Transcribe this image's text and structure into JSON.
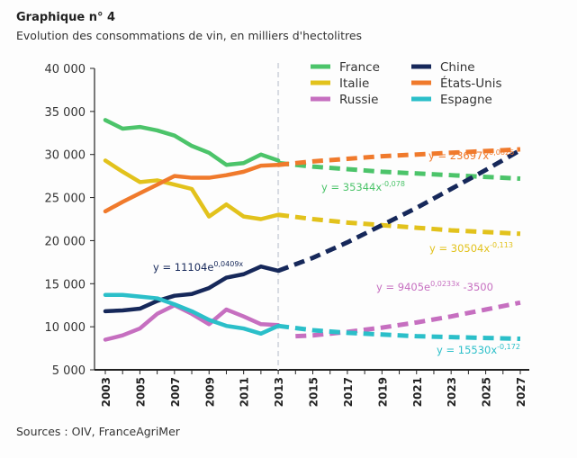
{
  "title": "Graphique n° 4",
  "subtitle": "Evolution des consommations de vin, en milliers d'hectolitres",
  "source": "Sources : OIV, FranceAgriMer",
  "chart_data": {
    "type": "line",
    "title": "Graphique n° 4",
    "subtitle": "Evolution des consommations de vin, en milliers d'hectolitres",
    "ylim": [
      5000,
      40000
    ],
    "xlim": [
      2003,
      2027
    ],
    "yticks": [
      "5 000",
      "10 000",
      "15 000",
      "20 000",
      "25 000",
      "30 000",
      "35 000",
      "40 000"
    ],
    "ytick_values": [
      5000,
      10000,
      15000,
      20000,
      25000,
      30000,
      35000,
      40000
    ],
    "xticks": [
      "2003",
      "2005",
      "2007",
      "2009",
      "2011",
      "2013",
      "2015",
      "2017",
      "2019",
      "2021",
      "2023",
      "2025",
      "2027"
    ],
    "projection_start": 2013,
    "legend_position": "top-right",
    "grid": false,
    "series": [
      {
        "name": "France",
        "color": "#4cc46a",
        "x": [
          2003,
          2004,
          2005,
          2006,
          2007,
          2008,
          2009,
          2010,
          2011,
          2012,
          2013
        ],
        "values": [
          34000,
          33000,
          33200,
          32800,
          32200,
          31000,
          30200,
          28800,
          29000,
          30000,
          29300
        ],
        "projection": {
          "x": [
            2013,
            2015,
            2017,
            2019,
            2021,
            2023,
            2025,
            2027
          ],
          "values": [
            29000,
            28600,
            28300,
            28000,
            27800,
            27600,
            27400,
            27200
          ]
        },
        "equation": "y = 35344x",
        "exponent": "-0,078"
      },
      {
        "name": "Italie",
        "color": "#e2c21c",
        "x": [
          2003,
          2004,
          2005,
          2006,
          2007,
          2008,
          2009,
          2010,
          2011,
          2012,
          2013
        ],
        "values": [
          29300,
          28000,
          26800,
          27000,
          26500,
          26000,
          22800,
          24200,
          22800,
          22500,
          23000
        ],
        "projection": {
          "x": [
            2013,
            2015,
            2017,
            2019,
            2021,
            2023,
            2025,
            2027
          ],
          "values": [
            23000,
            22500,
            22100,
            21800,
            21500,
            21200,
            21000,
            20800
          ]
        },
        "equation": "y = 30504x",
        "exponent": "-0,113"
      },
      {
        "name": "Russie",
        "color": "#c66fc0",
        "x": [
          2003,
          2004,
          2005,
          2006,
          2007,
          2008,
          2009,
          2010,
          2011,
          2012,
          2013
        ],
        "values": [
          8500,
          9000,
          9800,
          11500,
          12500,
          11500,
          10300,
          12000,
          11200,
          10300,
          10200
        ],
        "projection": {
          "x": [
            2014,
            2015,
            2017,
            2019,
            2021,
            2023,
            2025,
            2027
          ],
          "values": [
            8900,
            9000,
            9400,
            9900,
            10500,
            11200,
            12000,
            12800
          ]
        },
        "equation": "y = 9405e",
        "exponent": "0,0233x",
        "equation_suffix": " -3500"
      },
      {
        "name": "Chine",
        "color": "#16285a",
        "x": [
          2003,
          2004,
          2005,
          2006,
          2007,
          2008,
          2009,
          2010,
          2011,
          2012,
          2013
        ],
        "values": [
          11800,
          11900,
          12100,
          13000,
          13600,
          13800,
          14500,
          15700,
          16100,
          17000,
          16500
        ],
        "projection": {
          "x": [
            2013,
            2015,
            2017,
            2019,
            2021,
            2023,
            2025,
            2027
          ],
          "values": [
            16500,
            18000,
            19800,
            21800,
            23800,
            26000,
            28200,
            30500
          ]
        },
        "equation": "y = 11104e",
        "exponent": "0,0409x"
      },
      {
        "name": "États-Unis",
        "color": "#f07a2c",
        "x": [
          2003,
          2004,
          2005,
          2006,
          2007,
          2008,
          2009,
          2010,
          2011,
          2012,
          2013
        ],
        "values": [
          23400,
          24500,
          25500,
          26500,
          27500,
          27300,
          27300,
          27600,
          28000,
          28700,
          28800
        ],
        "projection": {
          "x": [
            2013,
            2015,
            2017,
            2019,
            2021,
            2023,
            2025,
            2027
          ],
          "values": [
            28800,
            29200,
            29500,
            29800,
            30000,
            30200,
            30400,
            30600
          ]
        },
        "equation": "y = 23697x",
        "exponent": "0,0826"
      },
      {
        "name": "Espagne",
        "color": "#2bbfc9",
        "x": [
          2003,
          2004,
          2005,
          2006,
          2007,
          2008,
          2009,
          2010,
          2011,
          2012,
          2013
        ],
        "values": [
          13700,
          13700,
          13500,
          13300,
          12600,
          11800,
          10800,
          10100,
          9800,
          9200,
          10100
        ],
        "projection": {
          "x": [
            2013,
            2015,
            2017,
            2019,
            2021,
            2023,
            2025,
            2027
          ],
          "values": [
            10100,
            9600,
            9300,
            9100,
            8900,
            8800,
            8700,
            8600
          ]
        },
        "equation": "y = 15530x",
        "exponent": "-0,172"
      }
    ]
  }
}
